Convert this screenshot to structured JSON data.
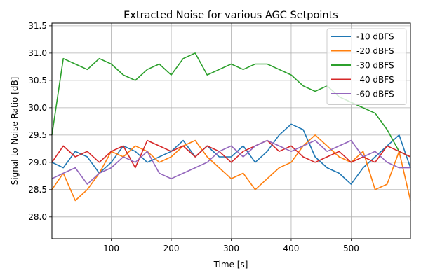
{
  "chart_data": {
    "type": "line",
    "title": "Extracted Noise for various AGC Setpoints",
    "xlabel": "Time [s]",
    "ylabel": "Signal-to-Noise Ratio [dB]",
    "xlim": [
      1,
      599
    ],
    "ylim": [
      27.6,
      31.55
    ],
    "x_ticks": [
      100,
      200,
      300,
      400,
      500
    ],
    "y_ticks": [
      28.0,
      28.5,
      29.0,
      29.5,
      30.0,
      30.5,
      31.0,
      31.5
    ],
    "x_tick_labels": [
      "100",
      "200",
      "300",
      "400",
      "500"
    ],
    "y_tick_labels": [
      "28.0",
      "28.5",
      "29.0",
      "29.5",
      "30.0",
      "30.5",
      "31.0",
      "31.5"
    ],
    "grid": true,
    "legend_position": "top-right",
    "x": [
      1,
      20,
      40,
      60,
      80,
      100,
      120,
      140,
      160,
      180,
      200,
      220,
      240,
      260,
      280,
      300,
      320,
      340,
      360,
      380,
      400,
      420,
      440,
      460,
      480,
      500,
      520,
      540,
      560,
      580,
      599
    ],
    "series": [
      {
        "name": "-10 dBFS",
        "color": "#1f77b4",
        "values": [
          29.0,
          28.9,
          29.2,
          29.1,
          28.8,
          29.0,
          29.3,
          29.2,
          29.0,
          29.1,
          29.2,
          29.4,
          29.1,
          29.3,
          29.1,
          29.1,
          29.3,
          29.0,
          29.2,
          29.5,
          29.7,
          29.6,
          29.1,
          28.9,
          28.8,
          28.6,
          28.9,
          29.1,
          29.3,
          29.5,
          28.9
        ]
      },
      {
        "name": "-20 dBFS",
        "color": "#ff7f0e",
        "values": [
          28.5,
          28.8,
          28.3,
          28.5,
          28.8,
          29.2,
          29.1,
          29.3,
          29.2,
          29.0,
          29.1,
          29.3,
          29.4,
          29.1,
          28.9,
          28.7,
          28.8,
          28.5,
          28.7,
          28.9,
          29.0,
          29.3,
          29.5,
          29.3,
          29.1,
          29.0,
          29.2,
          28.5,
          28.6,
          29.2,
          28.3
        ]
      },
      {
        "name": "-30 dBFS",
        "color": "#2ca02c",
        "values": [
          29.5,
          30.9,
          30.8,
          30.7,
          30.9,
          30.8,
          30.6,
          30.5,
          30.7,
          30.8,
          30.6,
          30.9,
          31.0,
          30.6,
          30.7,
          30.8,
          30.7,
          30.8,
          30.8,
          30.7,
          30.6,
          30.4,
          30.3,
          30.4,
          30.2,
          30.1,
          30.0,
          29.9,
          29.6,
          29.2,
          29.1
        ]
      },
      {
        "name": "-40 dBFS",
        "color": "#d62728",
        "values": [
          29.0,
          29.3,
          29.1,
          29.2,
          29.0,
          29.2,
          29.3,
          28.9,
          29.4,
          29.3,
          29.2,
          29.3,
          29.1,
          29.3,
          29.2,
          29.0,
          29.2,
          29.3,
          29.4,
          29.2,
          29.3,
          29.1,
          29.0,
          29.1,
          29.2,
          29.0,
          29.1,
          29.0,
          29.3,
          29.2,
          29.1
        ]
      },
      {
        "name": "-60 dBFS",
        "color": "#9467bd",
        "values": [
          28.7,
          28.8,
          28.9,
          28.6,
          28.8,
          28.9,
          29.1,
          29.0,
          29.2,
          28.8,
          28.7,
          28.8,
          28.9,
          29.0,
          29.2,
          29.3,
          29.1,
          29.3,
          29.4,
          29.3,
          29.2,
          29.3,
          29.4,
          29.2,
          29.3,
          29.4,
          29.1,
          29.2,
          29.0,
          28.9,
          28.9
        ]
      }
    ]
  }
}
